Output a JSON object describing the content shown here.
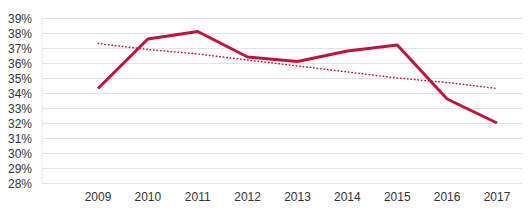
{
  "chart_data": {
    "type": "line",
    "categories": [
      "2009",
      "2010",
      "2011",
      "2012",
      "2013",
      "2014",
      "2015",
      "2016",
      "2017"
    ],
    "series": [
      {
        "color": "#c0143c",
        "line_style": "solid",
        "values": [
          34.3,
          37.6,
          38.1,
          36.4,
          36.1,
          36.8,
          37.2,
          33.6,
          32.0
        ]
      },
      {
        "color": "#c0143c",
        "line_style": "dotted",
        "values": [
          37.3,
          36.9,
          36.6,
          36.2,
          35.8,
          35.4,
          35.0,
          34.7,
          34.3
        ]
      }
    ],
    "ylim": [
      28,
      39
    ],
    "yticks": [
      {
        "value": 28,
        "label": "28%"
      },
      {
        "value": 29,
        "label": "29%"
      },
      {
        "value": 30,
        "label": "30%"
      },
      {
        "value": 31,
        "label": "31%"
      },
      {
        "value": 32,
        "label": "32%"
      },
      {
        "value": 33,
        "label": "33%"
      },
      {
        "value": 34,
        "label": "34%"
      },
      {
        "value": 35,
        "label": "35%"
      },
      {
        "value": 36,
        "label": "36%"
      },
      {
        "value": 37,
        "label": "37%"
      },
      {
        "value": 38,
        "label": "38%"
      },
      {
        "value": 39,
        "label": "39%"
      }
    ],
    "grid": true
  }
}
